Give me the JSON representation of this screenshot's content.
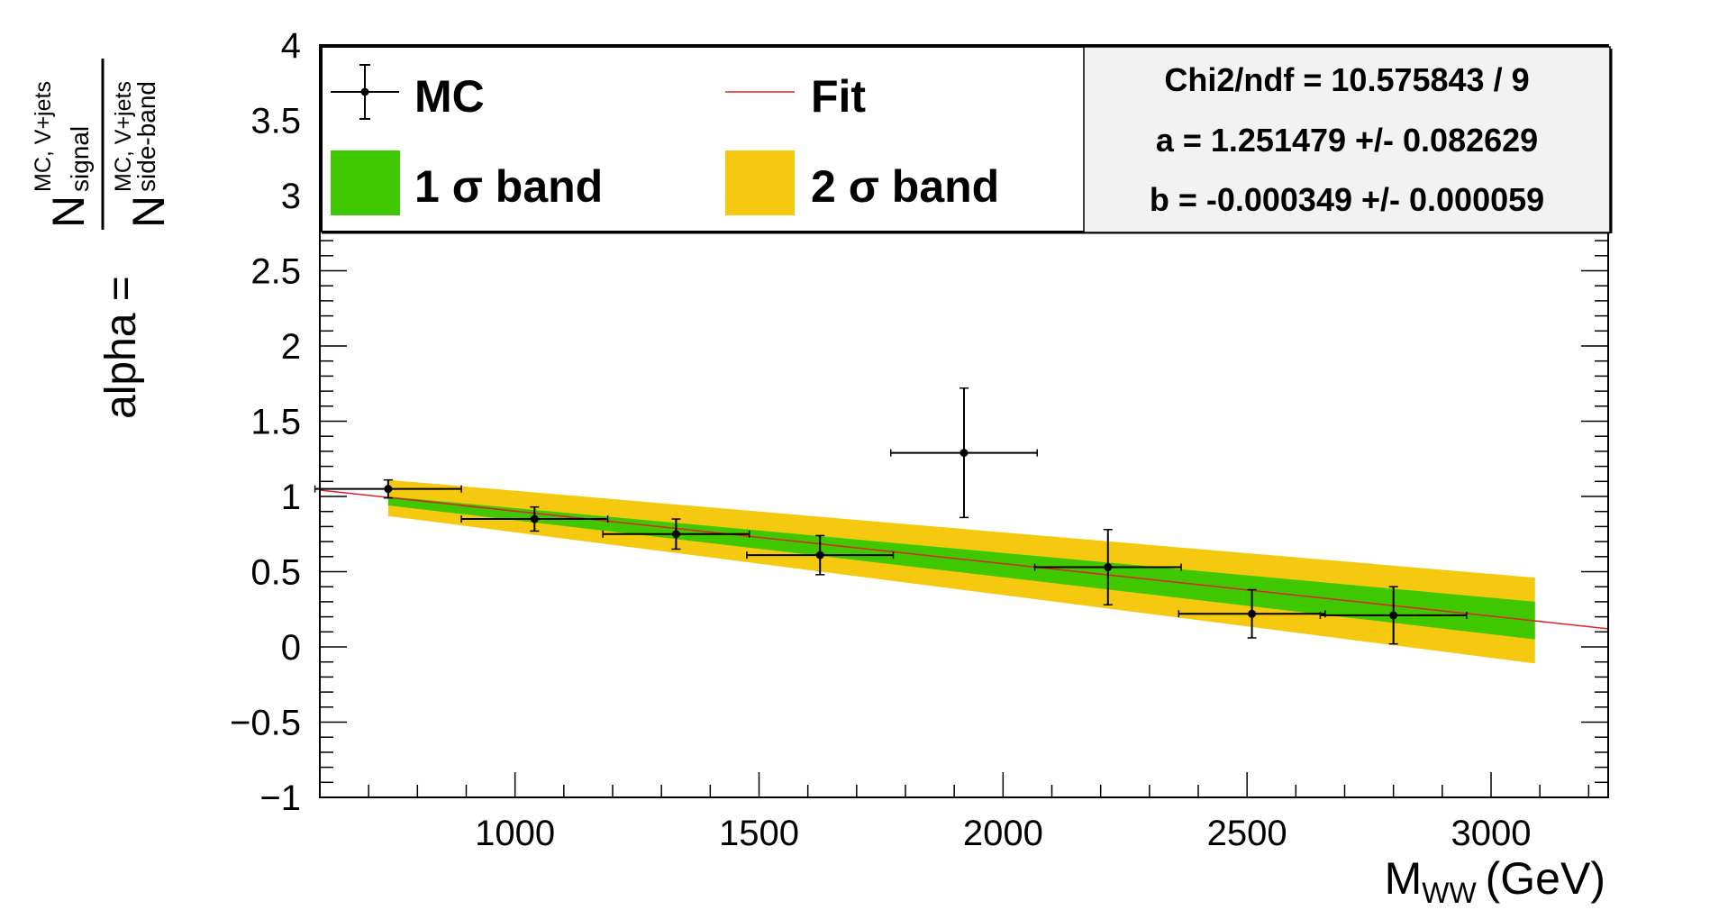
{
  "chart_data": {
    "type": "scatter",
    "xlabel": {
      "main": "M",
      "sub": "WW",
      "unit": "(GeV)"
    },
    "ylabel": {
      "prefix": "alpha =",
      "num_base": "N",
      "num_sup": "MC, V+jets",
      "num_sub": "signal",
      "den_base": "N",
      "den_sup": "MC, V+jets",
      "den_sub": "side-band"
    },
    "xlim": [
      600,
      3240
    ],
    "ylim": [
      -1,
      4
    ],
    "x_ticks": [
      1000,
      1500,
      2000,
      2500,
      3000
    ],
    "x_tick_labels": [
      "1000",
      "1500",
      "2000",
      "2500",
      "3000"
    ],
    "y_ticks": [
      -1,
      -0.5,
      0,
      0.5,
      1,
      1.5,
      2,
      2.5,
      3,
      3.5,
      4
    ],
    "y_tick_labels": [
      "−1",
      "−0.5",
      "0",
      "0.5",
      "1",
      "1.5",
      "2",
      "2.5",
      "3",
      "3.5",
      "4"
    ],
    "points": [
      {
        "x": 740,
        "xerr": 150,
        "y": 1.05,
        "yerr": 0.06
      },
      {
        "x": 1040,
        "xerr": 150,
        "y": 0.85,
        "yerr": 0.08
      },
      {
        "x": 1330,
        "xerr": 150,
        "y": 0.75,
        "yerr": 0.1
      },
      {
        "x": 1625,
        "xerr": 150,
        "y": 0.61,
        "yerr": 0.13
      },
      {
        "x": 1920,
        "xerr": 150,
        "y": 1.29,
        "yerr": 0.43
      },
      {
        "x": 2215,
        "xerr": 150,
        "y": 0.53,
        "yerr": 0.25
      },
      {
        "x": 2510,
        "xerr": 150,
        "y": 0.22,
        "yerr": 0.16
      },
      {
        "x": 2800,
        "xerr": 150,
        "y": 0.21,
        "yerr": 0.19
      }
    ],
    "fit": {
      "a": 1.251479,
      "b": -0.000349,
      "x_range": [
        600,
        3240
      ]
    },
    "band_1sigma": {
      "x": [
        740,
        3090
      ],
      "upper": [
        1.0,
        0.3
      ],
      "lower": [
        0.94,
        0.05
      ]
    },
    "band_2sigma": {
      "x": [
        740,
        3090
      ],
      "upper": [
        1.11,
        0.46
      ],
      "lower": [
        0.87,
        -0.11
      ]
    },
    "colors": {
      "one_sigma": "#3fc800",
      "two_sigma": "#f5c910",
      "fit": "#e0202a",
      "points": "#000000"
    },
    "legend": {
      "position": "top",
      "entries": [
        {
          "label": "MC",
          "kind": "points"
        },
        {
          "label": "Fit",
          "kind": "line"
        },
        {
          "label": "1 σ band",
          "kind": "box-1sigma"
        },
        {
          "label": "2 σ band",
          "kind": "box-2sigma"
        }
      ]
    },
    "stats": [
      "Chi2/ndf = 10.575843 / 9",
      "a = 1.251479 +/- 0.082629",
      "b = -0.000349 +/- 0.000059"
    ]
  }
}
